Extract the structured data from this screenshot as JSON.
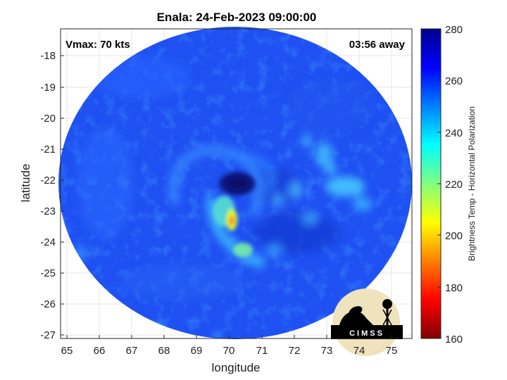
{
  "title": "Enala: 24-Feb-2023 09:00:00",
  "overlay": {
    "vmax": "Vmax: 70 kts",
    "time_away": "03:56 away"
  },
  "axes": {
    "xlabel": "longitude",
    "ylabel": "latitude",
    "xlim": [
      64.8,
      75.6
    ],
    "ylim": [
      -27.1,
      -17.3
    ],
    "xticks": [
      65,
      66,
      67,
      68,
      69,
      70,
      71,
      72,
      73,
      74,
      75
    ],
    "yticks": [
      -18,
      -19,
      -20,
      -21,
      -22,
      -23,
      -24,
      -25,
      -26,
      -27
    ]
  },
  "colorbar": {
    "label": "Brightness Temp - Horizontal Polarization",
    "range": [
      160,
      280
    ],
    "ticks": [
      280,
      260,
      240,
      220,
      200,
      180,
      160
    ],
    "colors": [
      "#800000",
      "#ff0000",
      "#ff8000",
      "#ffff00",
      "#80ff80",
      "#00ffff",
      "#0080ff",
      "#0000ff",
      "#00008f"
    ]
  },
  "logo": {
    "text": "CIMSS"
  },
  "swath": {
    "center": [
      70.2,
      -22.3
    ],
    "background_tb": 255,
    "eye": [
      70.3,
      -22.2
    ],
    "eye_tb": 265,
    "warmest_core": [
      70.1,
      -23.3
    ],
    "warmest_tb": 195
  }
}
